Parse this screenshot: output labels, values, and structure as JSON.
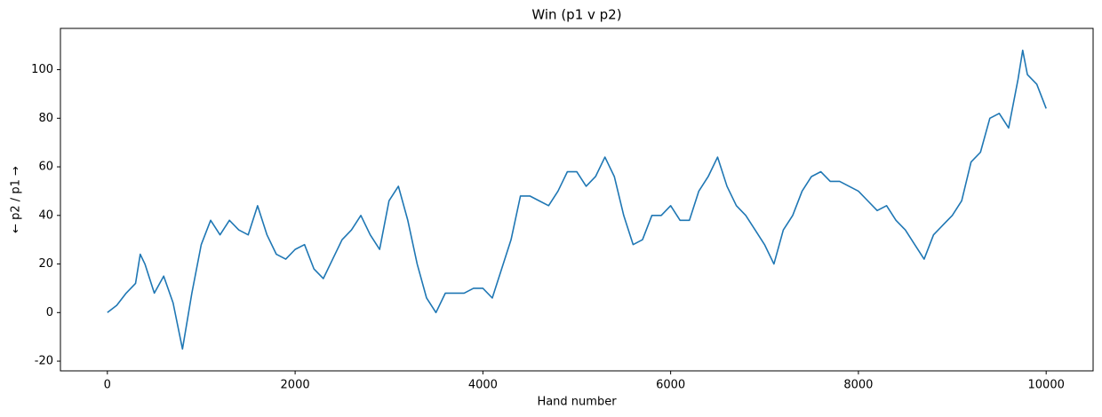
{
  "chart_data": {
    "type": "line",
    "title": "Win (p1 v p2)",
    "x_label": "Hand number",
    "y_label": "← p2 / p1 →",
    "color": "#1f77b4",
    "x": [
      0,
      100,
      200,
      300,
      350,
      400,
      500,
      600,
      700,
      800,
      900,
      1000,
      1100,
      1200,
      1300,
      1400,
      1500,
      1600,
      1700,
      1800,
      1900,
      2000,
      2100,
      2200,
      2300,
      2400,
      2500,
      2600,
      2700,
      2800,
      2900,
      3000,
      3100,
      3200,
      3300,
      3400,
      3500,
      3600,
      3700,
      3800,
      3900,
      4000,
      4100,
      4200,
      4300,
      4400,
      4500,
      4600,
      4700,
      4800,
      4900,
      5000,
      5100,
      5200,
      5300,
      5400,
      5500,
      5600,
      5700,
      5800,
      5900,
      6000,
      6100,
      6200,
      6300,
      6400,
      6500,
      6600,
      6700,
      6800,
      6900,
      7000,
      7100,
      7200,
      7300,
      7400,
      7500,
      7600,
      7700,
      7800,
      7900,
      8000,
      8100,
      8200,
      8300,
      8400,
      8500,
      8600,
      8700,
      8800,
      8900,
      9000,
      9100,
      9200,
      9300,
      9400,
      9500,
      9600,
      9700,
      9750,
      9800,
      9900,
      10000
    ],
    "values": [
      0,
      3,
      8,
      12,
      24,
      20,
      8,
      15,
      4,
      -15,
      8,
      28,
      38,
      32,
      38,
      34,
      32,
      44,
      32,
      24,
      22,
      26,
      28,
      18,
      14,
      22,
      30,
      34,
      40,
      32,
      26,
      46,
      52,
      38,
      20,
      6,
      0,
      8,
      8,
      8,
      10,
      10,
      6,
      18,
      30,
      48,
      48,
      46,
      44,
      50,
      58,
      58,
      52,
      56,
      64,
      56,
      40,
      28,
      30,
      40,
      40,
      44,
      38,
      38,
      50,
      56,
      64,
      52,
      44,
      40,
      34,
      28,
      20,
      34,
      40,
      50,
      56,
      58,
      54,
      54,
      52,
      50,
      46,
      42,
      44,
      38,
      34,
      28,
      22,
      32,
      36,
      40,
      46,
      62,
      66,
      80,
      82,
      76,
      96,
      108,
      98,
      94,
      84
    ],
    "xlim": [
      -500,
      10500
    ],
    "ylim": [
      -24,
      117
    ],
    "xticks": [
      0,
      2000,
      4000,
      6000,
      8000,
      10000
    ],
    "yticks": [
      -20,
      0,
      20,
      40,
      60,
      80,
      100
    ]
  }
}
